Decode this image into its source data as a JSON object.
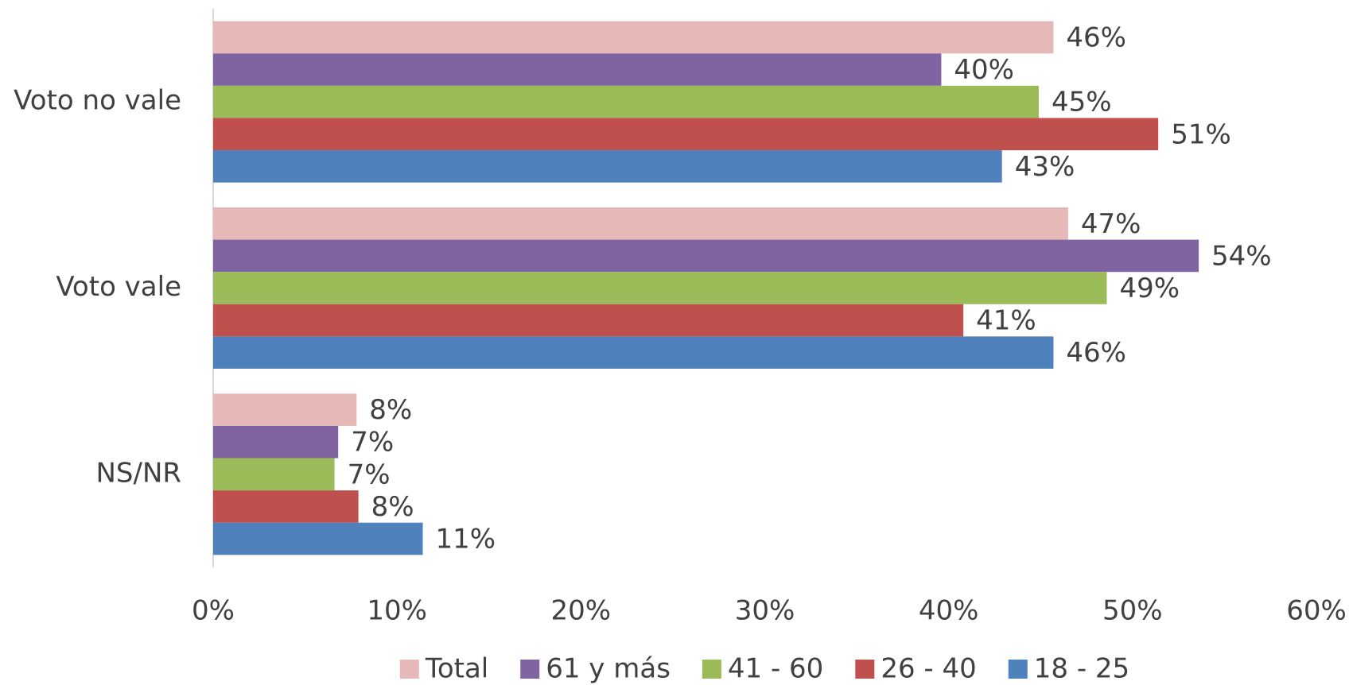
{
  "chart_data": {
    "type": "bar",
    "orientation": "horizontal",
    "categories": [
      "Voto no vale",
      "Voto vale",
      "NS/NR"
    ],
    "series": [
      {
        "name": "Total",
        "color": "#e6b9b8",
        "values": [
          45.7,
          46.5,
          7.8
        ],
        "value_labels": [
          "46%",
          "47%",
          "8%"
        ]
      },
      {
        "name": "61 y más",
        "color": "#8064a2",
        "values": [
          39.6,
          53.6,
          6.8
        ],
        "value_labels": [
          "40%",
          "54%",
          "7%"
        ]
      },
      {
        "name": "41 - 60",
        "color": "#9bbb59",
        "values": [
          44.9,
          48.6,
          6.6
        ],
        "value_labels": [
          "45%",
          "49%",
          "7%"
        ]
      },
      {
        "name": "26 - 40",
        "color": "#c0504d",
        "values": [
          51.4,
          40.8,
          7.9
        ],
        "value_labels": [
          "51%",
          "41%",
          "8%"
        ]
      },
      {
        "name": "18 - 25",
        "color": "#4f81bd",
        "values": [
          42.9,
          45.7,
          11.4
        ],
        "value_labels": [
          "43%",
          "46%",
          "11%"
        ]
      }
    ],
    "xlim": [
      0,
      60
    ],
    "xticks": [
      {
        "value": 0,
        "label": "0%"
      },
      {
        "value": 10,
        "label": "10%"
      },
      {
        "value": 20,
        "label": "20%"
      },
      {
        "value": 30,
        "label": "30%"
      },
      {
        "value": 40,
        "label": "40%"
      },
      {
        "value": 50,
        "label": "50%"
      },
      {
        "value": 60,
        "label": "60%"
      }
    ],
    "grid": false,
    "legend": "bottom"
  }
}
